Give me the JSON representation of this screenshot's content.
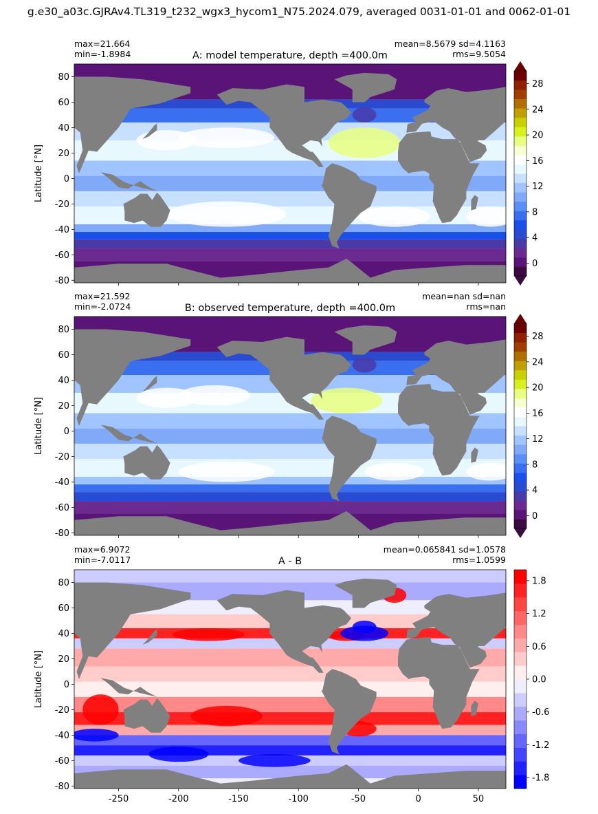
{
  "suptitle": "g.e30_a03c.GJRAv4.TL319_t232_wgx3_hycom1_N75.2024.079, averaged 0031-01-01 and 0062-01-01",
  "colors": {
    "land": "#808080",
    "temperature_scale": [
      "#3a0a40",
      "#5a1478",
      "#6a2a90",
      "#4a3aa8",
      "#2a4ad0",
      "#1a50e8",
      "#3a70f0",
      "#5a90f8",
      "#80aaf8",
      "#a0c4ff",
      "#c8e0ff",
      "#e8f8ff",
      "#ffffff",
      "#f8ffd0",
      "#e8ff80",
      "#d8f020",
      "#c8d000",
      "#c0a000",
      "#b07000",
      "#a04000",
      "#902000",
      "#6a0000"
    ],
    "diff_scale": [
      "#0000ff",
      "#2222ff",
      "#4444ff",
      "#6666ff",
      "#8888ff",
      "#aaaaff",
      "#ccccff",
      "#eeeeff",
      "#ffeeee",
      "#ffcccc",
      "#ffaaaa",
      "#ff8888",
      "#ff6666",
      "#ff4444",
      "#ff2222",
      "#ff0000"
    ]
  },
  "chart_data": [
    {
      "type": "heatmap",
      "panel": "A",
      "title": "A: model temperature, depth =400.0m",
      "stats_left": [
        "max=21.664",
        "min=-1.8984"
      ],
      "stats_right": [
        "mean=8.5679 sd=4.1163",
        "rms=9.5054"
      ],
      "ylabel": "Latitude [°N]",
      "xlabel": "",
      "xlim": [
        -287,
        73
      ],
      "ylim": [
        -82,
        90
      ],
      "yticks": [
        -80,
        -60,
        -40,
        -20,
        0,
        20,
        40,
        60,
        80
      ],
      "xticks": [
        -250,
        -200,
        -150,
        -100,
        -50,
        0,
        50
      ],
      "show_xticklabels": false,
      "colorbar": {
        "range": [
          -2,
          30
        ],
        "ticks": [
          0,
          4,
          8,
          12,
          16,
          20,
          24,
          28
        ],
        "extend": "both",
        "scale": "temperature"
      }
    },
    {
      "type": "heatmap",
      "panel": "B",
      "title": "B: observed temperature, depth =400.0m",
      "stats_left": [
        "max=21.592",
        "min=-2.0724"
      ],
      "stats_right": [
        "mean=nan sd=nan",
        "rms=nan"
      ],
      "ylabel": "Latitude [°N]",
      "xlabel": "",
      "xlim": [
        -287,
        73
      ],
      "ylim": [
        -82,
        90
      ],
      "yticks": [
        -80,
        -60,
        -40,
        -20,
        0,
        20,
        40,
        60,
        80
      ],
      "xticks": [
        -250,
        -200,
        -150,
        -100,
        -50,
        0,
        50
      ],
      "show_xticklabels": false,
      "colorbar": {
        "range": [
          -2,
          30
        ],
        "ticks": [
          0,
          4,
          8,
          12,
          16,
          20,
          24,
          28
        ],
        "extend": "both",
        "scale": "temperature"
      }
    },
    {
      "type": "heatmap",
      "panel": "A-B",
      "title": "A - B",
      "stats_left": [
        "max=6.9072",
        "min=-7.0117"
      ],
      "stats_right": [
        "mean=0.065841 sd=1.0578",
        "rms=1.0599"
      ],
      "ylabel": "Latitude [°N]",
      "xlabel": "",
      "xlim": [
        -287,
        73
      ],
      "ylim": [
        -82,
        90
      ],
      "yticks": [
        -80,
        -60,
        -40,
        -20,
        0,
        20,
        40,
        60,
        80
      ],
      "xticks": [
        -250,
        -200,
        -150,
        -100,
        -50,
        0,
        50
      ],
      "show_xticklabels": true,
      "colorbar": {
        "range": [
          -2.0,
          2.0
        ],
        "ticks": [
          -1.8,
          -1.2,
          -0.6,
          0.0,
          0.6,
          1.2,
          1.8
        ],
        "extend": "neither",
        "scale": "diff"
      }
    }
  ]
}
